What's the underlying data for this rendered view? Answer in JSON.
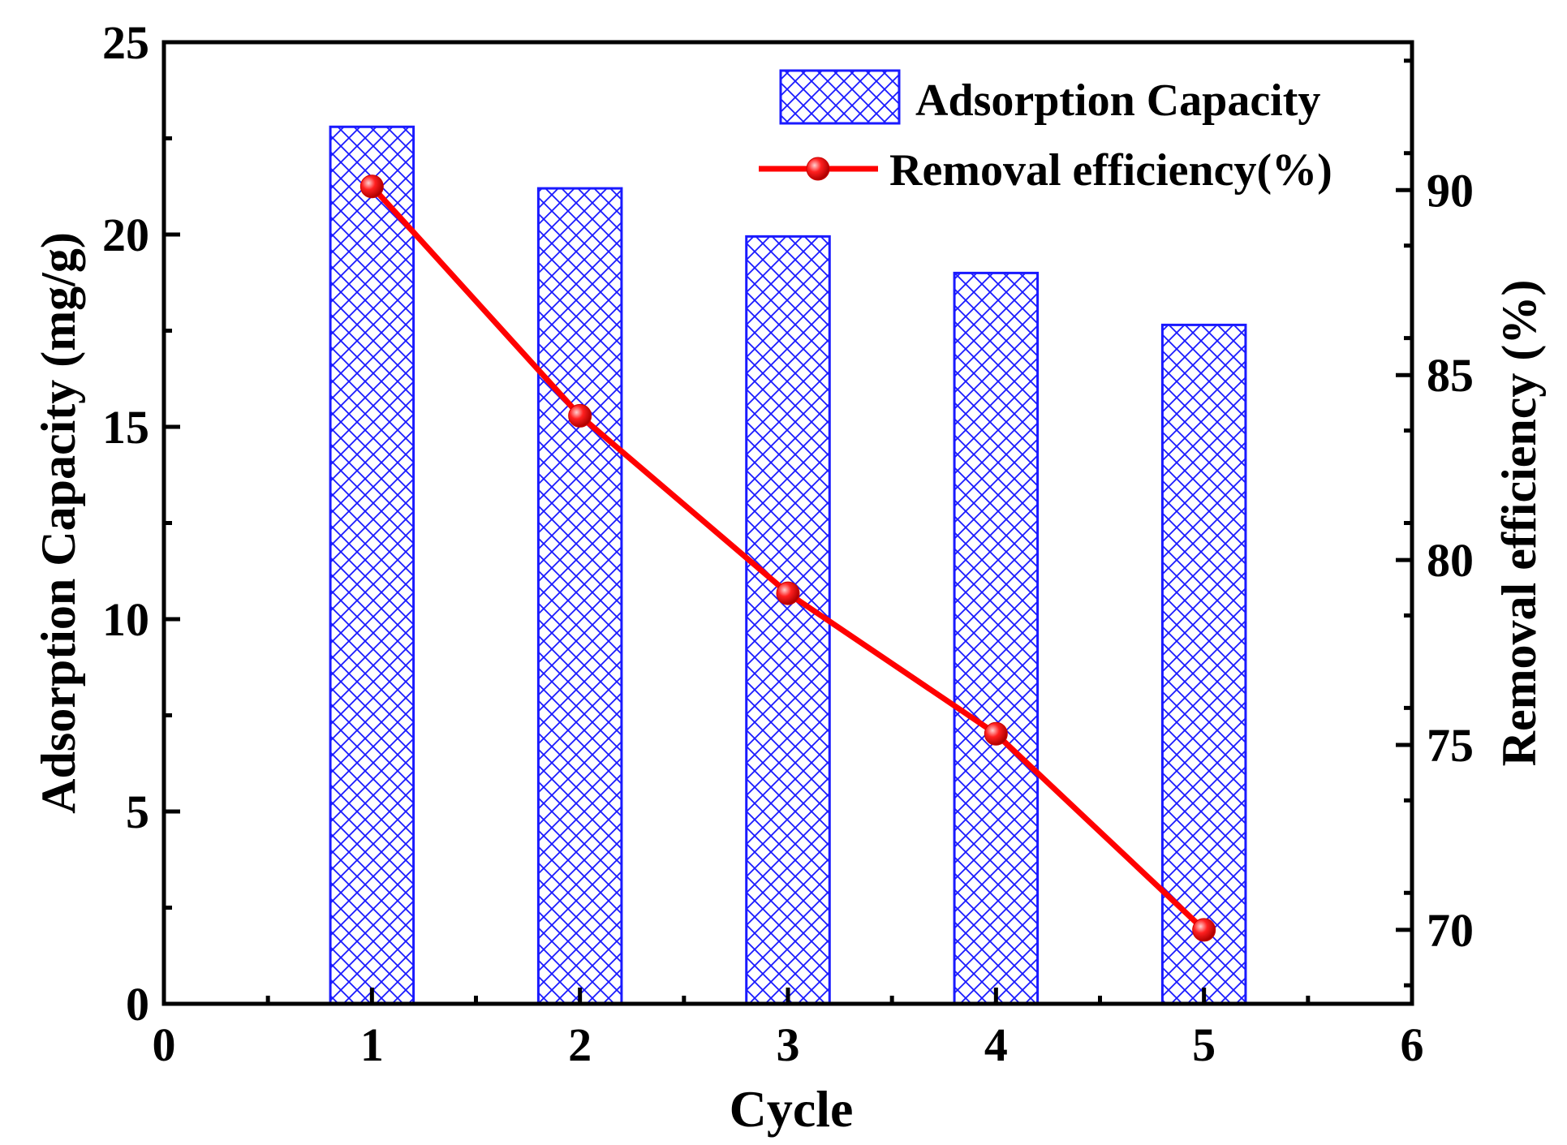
{
  "chart_data": {
    "type": "bar",
    "title": "",
    "xlabel": "Cycle",
    "ylabel": "Adsorption Capacity (mg/g)",
    "y2label": "Removal efficiency (%)",
    "xlim": [
      0,
      6
    ],
    "ylim": [
      0,
      25
    ],
    "y2lim": [
      68,
      94
    ],
    "x_ticks": [
      0,
      1,
      2,
      3,
      4,
      5,
      6
    ],
    "y_ticks": [
      0,
      5,
      10,
      15,
      20,
      25
    ],
    "y2_ticks": [
      70,
      75,
      80,
      85,
      90
    ],
    "grid": false,
    "legend_position": "top-right",
    "series": [
      {
        "name": "Adsorption Capacity",
        "type": "bar",
        "axis": "left",
        "x": [
          1,
          2,
          3,
          4,
          5
        ],
        "values": [
          22.8,
          21.2,
          19.95,
          19.0,
          17.65
        ],
        "color": "#1a1aff",
        "pattern": "crosshatch"
      },
      {
        "name": "Removal efficiency(%)",
        "type": "line",
        "axis": "right",
        "x": [
          1,
          2,
          3,
          4,
          5
        ],
        "values": [
          90.1,
          83.9,
          79.1,
          75.3,
          70.0
        ],
        "color": "#ff0000",
        "marker": "circle"
      }
    ]
  }
}
